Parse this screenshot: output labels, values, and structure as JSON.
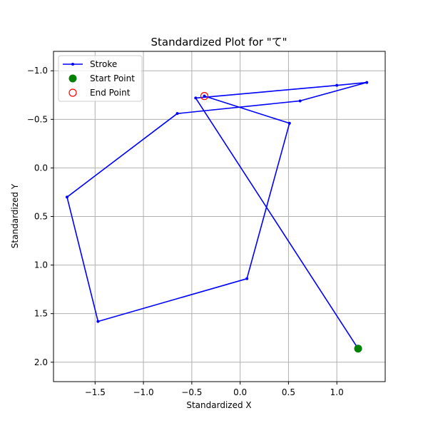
{
  "chart_data": {
    "type": "line",
    "title": "Standardized Plot for \"て\"",
    "xlabel": "Standardized X",
    "ylabel": "Standardized Y",
    "xlim": [
      -1.93,
      1.5
    ],
    "ylim": [
      2.2,
      -1.2
    ],
    "y_inverted": true,
    "grid": true,
    "legend_position": "top-left",
    "x_ticks": [
      -1.5,
      -1.0,
      -0.5,
      0.0,
      0.5,
      1.0
    ],
    "x_tick_labels": [
      "−1.5",
      "−1.0",
      "−0.5",
      "0.0",
      "0.5",
      "1.0"
    ],
    "y_ticks": [
      -1.0,
      -0.5,
      0.0,
      0.5,
      1.0,
      1.5,
      2.0
    ],
    "y_tick_labels": [
      "−1.0",
      "−0.5",
      "0.0",
      "0.5",
      "1.0",
      "1.5",
      "2.0"
    ],
    "series": [
      {
        "name": "Stroke",
        "color": "#0000ff",
        "marker": "dot",
        "x": [
          1.22,
          -0.46,
          1.0,
          1.31,
          0.62,
          -0.65,
          -1.79,
          -1.47,
          0.07,
          0.51,
          -0.37
        ],
        "y": [
          1.86,
          -0.72,
          -0.85,
          -0.88,
          -0.69,
          -0.56,
          0.3,
          1.58,
          1.14,
          -0.46,
          -0.74
        ]
      }
    ],
    "start_point": {
      "name": "Start Point",
      "x": 1.22,
      "y": 1.86,
      "color": "#008000"
    },
    "end_point": {
      "name": "End Point",
      "x": -0.37,
      "y": -0.74,
      "color": "#ff0000"
    }
  }
}
